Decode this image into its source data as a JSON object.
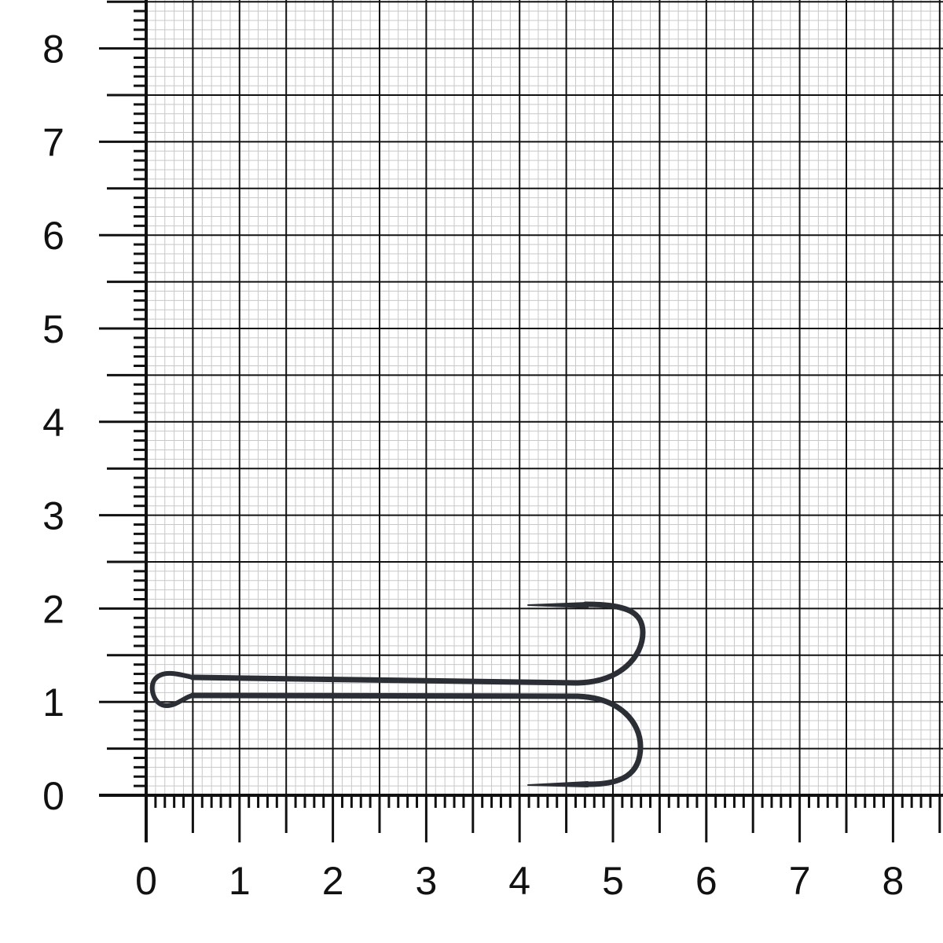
{
  "scale": {
    "x_labels": [
      "0",
      "1",
      "2",
      "3",
      "4",
      "5",
      "6",
      "7",
      "8"
    ],
    "y_labels": [
      "0",
      "1",
      "2",
      "3",
      "4",
      "5",
      "6",
      "7",
      "8"
    ],
    "major_step": 0.5,
    "minor_step": 0.1,
    "grid_color": "#111111",
    "minor_grid_color": "#c8c8c8"
  },
  "subject": {
    "object": "double-hook",
    "length_units": 5.3,
    "height_units": 2.05,
    "color": "#2b2e35"
  }
}
